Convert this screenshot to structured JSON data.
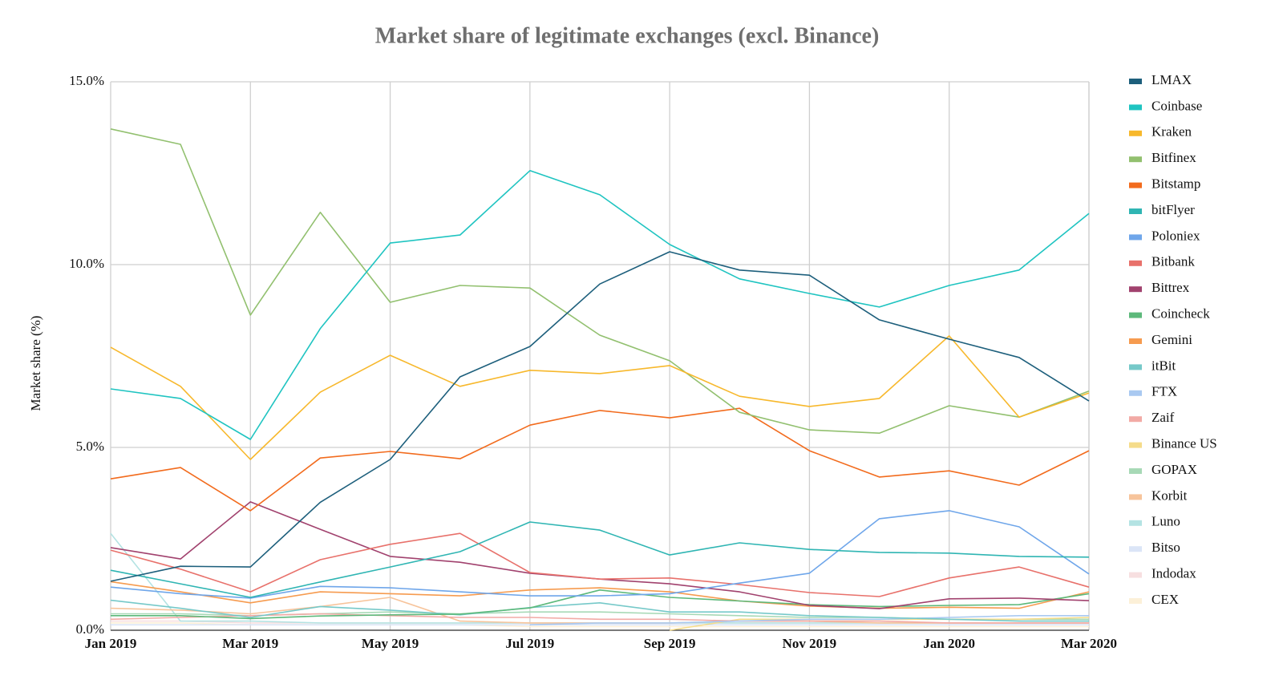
{
  "chart_data": {
    "type": "line",
    "title": "Market share of legitimate exchanges (excl. Binance)",
    "y_label": "Market share (%)",
    "categories": [
      "Jan 2019",
      null,
      "Mar 2019",
      null,
      "May 2019",
      null,
      "Jul 2019",
      null,
      "Sep 2019",
      null,
      "Nov 2019",
      null,
      "Jan 2020",
      null,
      "Mar 2020"
    ],
    "ylim": [
      0,
      15
    ],
    "yticks": [
      {
        "value": 0,
        "label": "0.0%"
      },
      {
        "value": 5,
        "label": "5.0%"
      },
      {
        "value": 10,
        "label": "10.0%"
      },
      {
        "value": 15,
        "label": "15.0%"
      }
    ],
    "grid": true,
    "legend": "right",
    "series": [
      {
        "name": "LMAX",
        "color": "#1d5f7c",
        "values": [
          1.34,
          1.75,
          1.73,
          3.5,
          4.67,
          6.93,
          7.76,
          9.47,
          10.35,
          9.85,
          9.71,
          8.49,
          7.96,
          7.46,
          6.27
        ]
      },
      {
        "name": "Coinbase",
        "color": "#1fc4c1",
        "values": [
          6.6,
          6.34,
          5.22,
          8.25,
          10.59,
          10.81,
          12.57,
          11.91,
          10.55,
          9.61,
          9.21,
          8.84,
          9.43,
          9.85,
          11.4
        ]
      },
      {
        "name": "Kraken",
        "color": "#f7b82c",
        "values": [
          7.74,
          6.67,
          4.67,
          6.51,
          7.52,
          6.67,
          7.11,
          7.02,
          7.24,
          6.4,
          6.12,
          6.34,
          8.05,
          5.83,
          6.49
        ]
      },
      {
        "name": "Bitfinex",
        "color": "#92c06f",
        "values": [
          13.71,
          13.29,
          8.62,
          11.43,
          8.97,
          9.43,
          9.36,
          8.07,
          7.37,
          5.96,
          5.48,
          5.39,
          6.14,
          5.83,
          6.54
        ]
      },
      {
        "name": "Bitstamp",
        "color": "#f26b1d",
        "values": [
          4.14,
          4.45,
          3.27,
          4.71,
          4.89,
          4.69,
          5.61,
          6.01,
          5.81,
          6.07,
          4.91,
          4.19,
          4.36,
          3.97,
          4.91
        ]
      },
      {
        "name": "bitFlyer",
        "color": "#2fb5b3",
        "values": [
          1.64,
          1.27,
          0.9,
          1.32,
          1.73,
          2.15,
          2.96,
          2.74,
          2.06,
          2.39,
          2.21,
          2.13,
          2.11,
          2.02,
          2.0
        ]
      },
      {
        "name": "Poloniex",
        "color": "#6fa6ea",
        "values": [
          1.18,
          1.0,
          0.88,
          1.2,
          1.16,
          1.05,
          0.94,
          0.94,
          1.0,
          1.29,
          1.56,
          3.05,
          3.27,
          2.83,
          1.54
        ]
      },
      {
        "name": "Bitbank",
        "color": "#e8716b",
        "values": [
          2.19,
          1.67,
          1.05,
          1.93,
          2.35,
          2.65,
          1.58,
          1.4,
          1.43,
          1.25,
          1.03,
          0.92,
          1.43,
          1.73,
          1.18
        ]
      },
      {
        "name": "Bittrex",
        "color": "#a1426e",
        "values": [
          2.26,
          1.95,
          3.51,
          2.76,
          2.02,
          1.86,
          1.56,
          1.4,
          1.27,
          1.05,
          0.68,
          0.59,
          0.86,
          0.88,
          0.81
        ]
      },
      {
        "name": "Coincheck",
        "color": "#5db97b",
        "values": [
          0.4,
          0.4,
          0.32,
          0.39,
          0.42,
          0.44,
          0.61,
          1.1,
          0.9,
          0.8,
          0.7,
          0.65,
          0.68,
          0.7,
          1.0
        ]
      },
      {
        "name": "Gemini",
        "color": "#f69b4f",
        "values": [
          1.33,
          1.05,
          0.75,
          1.05,
          1.0,
          0.94,
          1.1,
          1.16,
          1.05,
          0.8,
          0.66,
          0.6,
          0.63,
          0.6,
          1.05
        ]
      },
      {
        "name": "itBit",
        "color": "#76c9c9",
        "values": [
          0.82,
          0.6,
          0.35,
          0.65,
          0.55,
          0.42,
          0.62,
          0.75,
          0.5,
          0.5,
          0.4,
          0.35,
          0.3,
          0.25,
          0.25
        ]
      },
      {
        "name": "FTX",
        "color": "#a9c9f1",
        "values": [
          null,
          null,
          null,
          null,
          null,
          null,
          0.15,
          0.2,
          0.2,
          0.25,
          0.3,
          0.3,
          0.35,
          0.4,
          0.4
        ]
      },
      {
        "name": "Zaif",
        "color": "#f2aaa5",
        "values": [
          0.3,
          0.35,
          0.4,
          0.45,
          0.4,
          0.35,
          0.35,
          0.3,
          0.3,
          0.25,
          0.25,
          0.25,
          0.2,
          0.2,
          0.2
        ]
      },
      {
        "name": "Binance US",
        "color": "#f5dc8a",
        "values": [
          null,
          null,
          null,
          null,
          null,
          null,
          null,
          null,
          0.0,
          0.3,
          0.3,
          0.3,
          0.3,
          0.3,
          0.35
        ]
      },
      {
        "name": "GOPAX",
        "color": "#a7d9b6",
        "values": [
          0.45,
          0.45,
          0.4,
          0.45,
          0.5,
          0.45,
          0.5,
          0.5,
          0.45,
          0.4,
          0.35,
          0.35,
          0.3,
          0.3,
          0.3
        ]
      },
      {
        "name": "Korbit",
        "color": "#f7c49b",
        "values": [
          0.6,
          0.55,
          0.45,
          0.65,
          0.9,
          0.25,
          0.2,
          0.2,
          0.2,
          0.25,
          0.25,
          0.2,
          0.2,
          0.2,
          0.2
        ]
      },
      {
        "name": "Luno",
        "color": "#b4e3e3",
        "values": [
          2.65,
          0.25,
          0.25,
          0.2,
          0.2,
          0.2,
          0.2,
          0.2,
          0.2,
          0.2,
          0.2,
          0.2,
          0.2,
          0.2,
          0.2
        ]
      },
      {
        "name": "Bitso",
        "color": "#dbe5f7",
        "values": [
          0.15,
          0.15,
          0.15,
          0.15,
          0.15,
          0.15,
          0.15,
          0.15,
          0.15,
          0.15,
          0.15,
          0.15,
          0.15,
          0.15,
          0.15
        ]
      },
      {
        "name": "Indodax",
        "color": "#f7dfe0",
        "values": [
          0.25,
          0.25,
          0.2,
          0.2,
          0.2,
          0.2,
          0.2,
          0.2,
          0.2,
          0.2,
          0.2,
          0.2,
          0.2,
          0.2,
          0.2
        ]
      },
      {
        "name": "CEX",
        "color": "#fcf0d8",
        "values": [
          0.2,
          0.2,
          0.15,
          0.15,
          0.15,
          0.15,
          0.1,
          0.1,
          0.1,
          0.1,
          0.1,
          0.1,
          0.1,
          0.1,
          0.1
        ]
      }
    ]
  }
}
